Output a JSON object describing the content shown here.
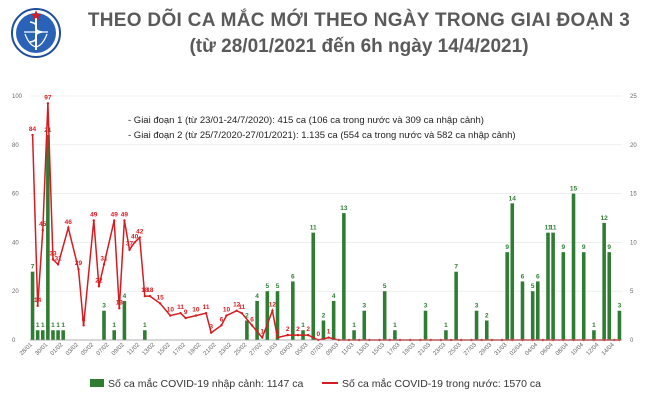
{
  "header": {
    "title": "THEO DÕI CA MẮC MỚI THEO NGÀY TRONG GIAI ĐOẠN 3",
    "subtitle": "(từ 28/01/2021 đến 6h ngày 14/4/2021)"
  },
  "logo": {
    "text_top": "BỘ Y TẾ",
    "text_bottom": "MINISTRY OF HEALTH"
  },
  "annotations": [
    "- Giai đoạn 1 (từ 23/01-24/7/2020): 415 ca (106 ca trong nước và 309 ca nhập cảnh)",
    "- Giai đoạn 2 (từ 25/7/2020-27/01/2021): 1.135 ca (554 ca trong nước và 582 ca nhập cảnh)"
  ],
  "colors": {
    "bar": "#2e7d32",
    "line": "#d81b20",
    "title": "#5a5a5a"
  },
  "chart_data": {
    "type": "bar+line",
    "left_axis": {
      "ticks": [
        "0",
        "20",
        "40",
        "60",
        "80",
        "100"
      ],
      "ylim": [
        0,
        100
      ]
    },
    "right_axis": {
      "ticks": [
        "0",
        "5",
        "10",
        "15",
        "20",
        "25"
      ],
      "ylim": [
        0,
        25
      ]
    },
    "x_tick_labels": [
      "28/01",
      "30/01",
      "01/02",
      "03/02",
      "05/02",
      "07/02",
      "09/02",
      "11/02",
      "13/02",
      "15/02",
      "17/02",
      "19/02",
      "21/02",
      "23/02",
      "25/02",
      "27/02",
      "01/03",
      "03/03",
      "05/03",
      "07/03",
      "09/03",
      "11/03",
      "13/03",
      "15/03",
      "17/03",
      "19/03",
      "21/03",
      "23/03",
      "25/03",
      "27/03",
      "29/03",
      "31/03",
      "02/04",
      "04/04",
      "06/04",
      "08/04",
      "10/04",
      "12/04",
      "14/04"
    ],
    "series": [
      {
        "name": "Số ca mắc COVID-19 nhập cảnh: 1147 ca",
        "type": "bar",
        "axis": "right",
        "values": [
          7,
          1,
          1,
          21,
          1,
          1,
          1,
          0,
          0,
          0,
          0,
          0,
          0,
          0,
          3,
          0,
          1,
          0,
          4,
          0,
          0,
          0,
          1,
          0,
          0,
          0,
          0,
          0,
          0,
          0,
          0,
          0,
          0,
          0,
          0,
          0,
          0,
          0,
          0,
          0,
          0,
          0,
          2,
          0,
          4,
          0,
          5,
          0,
          5,
          0,
          0,
          6,
          0,
          1,
          0,
          11,
          0,
          2,
          0,
          4,
          0,
          13,
          0,
          1,
          0,
          3,
          0,
          0,
          0,
          5,
          0,
          1,
          0,
          0,
          0,
          0,
          0,
          3,
          0,
          0,
          0,
          1,
          0,
          7,
          0,
          0,
          0,
          3,
          0,
          2,
          0,
          0,
          0,
          9,
          14,
          0,
          6,
          0,
          5,
          6,
          0,
          11,
          11,
          0,
          9,
          0,
          15,
          0,
          9,
          0,
          1,
          0,
          12,
          9,
          0,
          3
        ],
        "labels": [
          "7",
          "1",
          "1",
          "21",
          "1",
          "1",
          "1",
          "",
          "",
          "",
          "",
          "",
          "",
          "",
          "3",
          "",
          "1",
          "",
          "4",
          "",
          "",
          "",
          "1",
          "",
          "",
          "",
          "",
          "",
          "",
          "",
          "",
          "",
          "",
          "",
          "",
          "",
          "",
          "",
          "",
          "",
          "",
          "",
          "2",
          "",
          "4",
          "",
          "5",
          "",
          "5",
          "",
          "",
          "6",
          "",
          "1",
          "",
          "11",
          "",
          "2",
          "",
          "4",
          "",
          "13",
          "",
          "1",
          "",
          "3",
          "",
          "",
          "",
          "5",
          "",
          "1",
          "",
          "",
          "",
          "",
          "",
          "3",
          "",
          "",
          "",
          "1",
          "",
          "7",
          "",
          "",
          "",
          "3",
          "",
          "2",
          "",
          "",
          "",
          "9",
          "14",
          "",
          "6",
          "",
          "5",
          "6",
          "",
          "11",
          "11",
          "",
          "9",
          "",
          "15",
          "",
          "9",
          "",
          "1",
          "",
          "12",
          "9",
          "",
          "3"
        ]
      },
      {
        "name": "Số ca mắc COVID-19 trong nước: 1570 ca",
        "type": "line",
        "axis": "left",
        "points": [
          [
            0,
            84
          ],
          [
            1,
            14
          ],
          [
            2,
            45
          ],
          [
            3,
            97
          ],
          [
            4,
            33
          ],
          [
            5,
            31
          ],
          [
            7,
            46
          ],
          [
            9,
            29
          ],
          [
            10,
            6
          ],
          [
            12,
            49
          ],
          [
            13,
            22
          ],
          [
            14,
            31
          ],
          [
            16,
            49
          ],
          [
            17,
            13
          ],
          [
            18,
            49
          ],
          [
            19,
            37
          ],
          [
            20,
            40
          ],
          [
            21,
            42
          ],
          [
            22,
            18
          ],
          [
            23,
            18
          ],
          [
            25,
            15
          ],
          [
            27,
            10
          ],
          [
            29,
            11
          ],
          [
            30,
            9
          ],
          [
            32,
            10
          ],
          [
            34,
            11
          ],
          [
            35,
            3
          ],
          [
            37,
            6
          ],
          [
            38,
            10
          ],
          [
            40,
            12
          ],
          [
            41,
            11
          ],
          [
            43,
            6
          ],
          [
            45,
            1
          ],
          [
            47,
            12
          ],
          [
            48,
            1
          ],
          [
            50,
            2
          ],
          [
            52,
            2
          ],
          [
            54,
            2
          ],
          [
            56,
            0
          ],
          [
            58,
            1
          ],
          [
            60,
            0
          ],
          [
            62,
            0
          ],
          [
            64,
            0
          ],
          [
            66,
            0
          ],
          [
            68,
            0
          ],
          [
            70,
            0
          ],
          [
            72,
            0
          ],
          [
            74,
            0
          ],
          [
            76,
            0
          ],
          [
            78,
            0
          ],
          [
            80,
            0
          ],
          [
            82,
            0
          ],
          [
            84,
            0
          ],
          [
            86,
            0
          ],
          [
            88,
            0
          ],
          [
            90,
            0
          ],
          [
            92,
            0
          ],
          [
            94,
            0
          ],
          [
            96,
            0
          ],
          [
            98,
            0
          ],
          [
            100,
            0
          ],
          [
            102,
            0
          ],
          [
            104,
            0
          ],
          [
            106,
            0
          ],
          [
            108,
            0
          ],
          [
            110,
            0
          ],
          [
            112,
            0
          ],
          [
            114,
            0
          ],
          [
            115,
            0
          ]
        ],
        "labels": [
          "84",
          "14",
          "45",
          "97",
          "33",
          "31",
          "46",
          "29",
          "6",
          "49",
          "22",
          "31",
          "49",
          "13",
          "49",
          "37",
          "40",
          "42",
          "18",
          "18",
          "15",
          "10",
          "11",
          "9",
          "10",
          "11",
          "3",
          "6",
          "10",
          "12",
          "11",
          "6",
          "1",
          "12",
          "1",
          "2",
          "2",
          "2",
          "0",
          "1",
          "",
          "",
          "",
          "",
          "",
          "",
          "",
          "",
          "",
          "",
          "",
          "",
          "",
          "",
          "",
          "",
          "",
          "",
          "",
          "",
          "",
          "",
          "",
          "",
          "",
          "",
          "",
          "",
          ""
        ]
      }
    ],
    "legend": {
      "placement": "bottom"
    }
  }
}
